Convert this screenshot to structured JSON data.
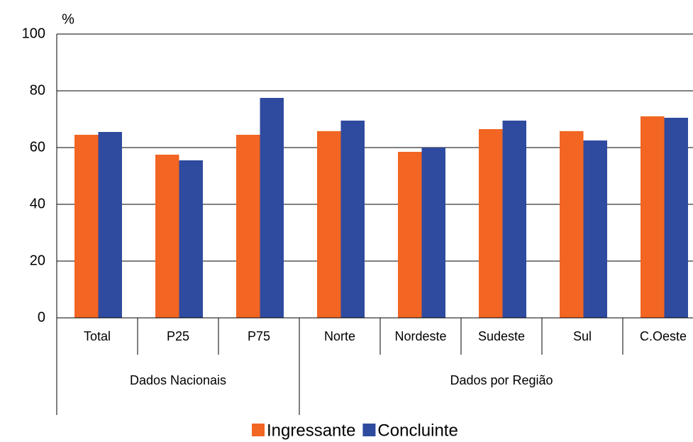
{
  "chart_data": {
    "type": "bar",
    "y_axis_label": "%",
    "categories": [
      "Total",
      "P25",
      "P75",
      "Norte",
      "Nordeste",
      "Sudeste",
      "Sul",
      "C.Oeste"
    ],
    "groups": [
      "Dados Nacionais",
      "Dados por Região"
    ],
    "series": [
      {
        "name": "Ingressante",
        "color": "#f26522",
        "values": [
          64.5,
          57.5,
          64.5,
          65.8,
          58.5,
          66.5,
          65.8,
          71
        ]
      },
      {
        "name": "Concluinte",
        "color": "#2f4b9f",
        "values": [
          65.5,
          55.5,
          77.5,
          69.5,
          60,
          69.5,
          62.5,
          70.5
        ]
      }
    ],
    "ylim": [
      0,
      100
    ],
    "yticks": [
      0,
      20,
      40,
      60,
      80,
      100
    ],
    "grid": true,
    "legend": "bottom"
  }
}
